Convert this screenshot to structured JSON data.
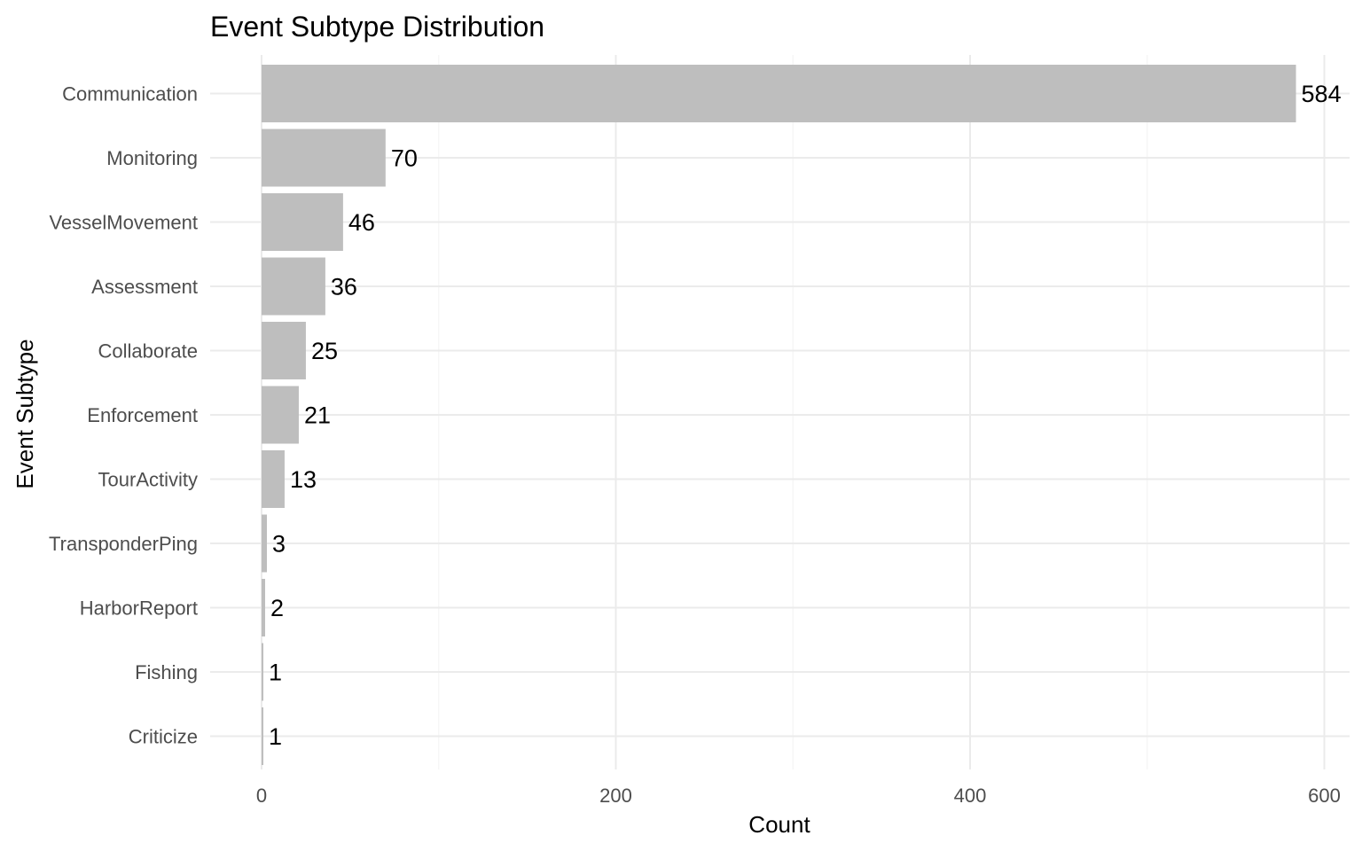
{
  "chart_data": {
    "type": "bar",
    "orientation": "horizontal",
    "title": "Event Subtype Distribution",
    "xlabel": "Count",
    "ylabel": "Event Subtype",
    "categories": [
      "Communication",
      "Monitoring",
      "VesselMovement",
      "Assessment",
      "Collaborate",
      "Enforcement",
      "TourActivity",
      "TransponderPing",
      "HarborReport",
      "Fishing",
      "Criticize"
    ],
    "values": [
      584,
      70,
      46,
      36,
      25,
      21,
      13,
      3,
      2,
      1,
      1
    ],
    "xlim": [
      0,
      600
    ],
    "xticks": [
      0,
      200,
      400,
      600
    ],
    "grid": true,
    "bar_color": "#bebebe",
    "grid_color": "#ebebeb"
  }
}
